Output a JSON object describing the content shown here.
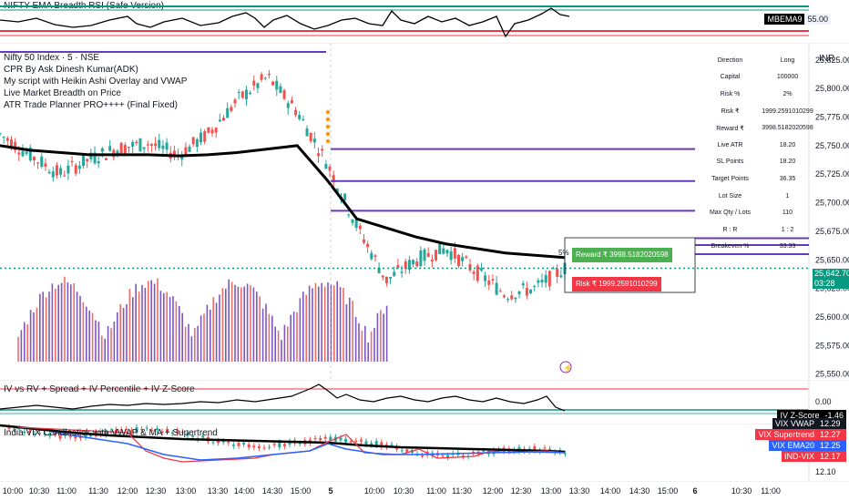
{
  "top_pane": {
    "title": "NIFTY EMA Breadth RSI (Safe Version)",
    "label": "MBEMA9",
    "value": "55.00"
  },
  "main_pane": {
    "symbol": "Nifty 50 Index · 5 · NSE",
    "indicators": [
      "CPR By Ask Dinesh Kumar(ADK)",
      "My script with Heikin Ashi Overlay and VWAP",
      "Live Market Breadth on Price",
      "ATR Trade Planner PRO++++ (Final Fixed)"
    ],
    "currency": "INR",
    "price_axis": [
      "25,825.00",
      "25,800.00",
      "25,775.00",
      "25,750.00",
      "25,725.00",
      "25,700.00",
      "25,675.00",
      "25,650.00",
      "25,625.00",
      "25,600.00",
      "25,575.00",
      "25,550.00"
    ],
    "last_price": "25,642.70",
    "countdown": "03:28",
    "reward_label": "Reward ₹ 3998.5182020598",
    "risk_label": "Risk ₹ 1999.2591010299",
    "side_pct": "5%"
  },
  "trade_table": [
    {
      "k": "Direction",
      "v": "Long"
    },
    {
      "k": "Capital",
      "v": "100000"
    },
    {
      "k": "Risk %",
      "v": "2%"
    },
    {
      "k": "Risk ₹",
      "v": "1999.2591010299"
    },
    {
      "k": "Reward ₹",
      "v": "3998.5182020598"
    },
    {
      "k": "Live ATR",
      "v": "18.20"
    },
    {
      "k": "SL Points",
      "v": "18.20"
    },
    {
      "k": "Target Points",
      "v": "36.35"
    },
    {
      "k": "Lot Size",
      "v": "1"
    },
    {
      "k": "Max Qty / Lots",
      "v": "110"
    },
    {
      "k": "R : R",
      "v": "1 : 2"
    },
    {
      "k": "Breakeven %",
      "v": "33.33"
    }
  ],
  "iv_pane": {
    "title": "IV vs RV + Spread + IV Percentile + IV Z-Score",
    "axis_value": "0.00",
    "label": "IV Z-Score",
    "value": "-1.46"
  },
  "vix_pane": {
    "title": "India VIX Candlestick with VWAP & MA + Supertrend",
    "labels": [
      {
        "name": "VIX VWAP",
        "value": "12.29",
        "color": "#131722",
        "text": "#ffffff"
      },
      {
        "name": "VIX Supertrend",
        "value": "12.27",
        "color": "#f23645",
        "text": "#ffffff"
      },
      {
        "name": "VIX EMA20",
        "value": "12.25",
        "color": "#2962ff",
        "text": "#ffffff"
      },
      {
        "name": "IND-VIX",
        "value": "12.17",
        "color": "#f23645",
        "text": "#ffffff"
      }
    ],
    "axis_bottom": "12.10"
  },
  "time_axis": [
    "10:00",
    "10:30",
    "11:00",
    "11:30",
    "12:00",
    "12:30",
    "13:00",
    "13:30",
    "14:00",
    "14:30",
    "15:00",
    "5",
    "10:00",
    "10:30",
    "11:00",
    "11:30",
    "12:00",
    "12:30",
    "13:00",
    "13:30",
    "14:00",
    "14:30",
    "15:00",
    "6",
    "10:30",
    "11:00"
  ],
  "colors": {
    "up": "#26a69a",
    "down": "#ef5350",
    "purple": "#673ab7",
    "teal": "#089981",
    "red": "#f23645",
    "blue": "#2962ff",
    "black": "#000000"
  },
  "chart_data": {
    "type": "candlestick",
    "x": [
      "10:00",
      "10:30",
      "11:00",
      "11:30",
      "12:00",
      "12:30",
      "13:00",
      "13:30",
      "14:00",
      "14:30",
      "15:00",
      "5",
      "10:00",
      "10:30",
      "11:00",
      "11:30",
      "12:00",
      "12:30",
      "13:00",
      "13:30"
    ],
    "close": [
      25760,
      25742,
      25725,
      25738,
      25748,
      25752,
      25742,
      25760,
      25790,
      25810,
      25780,
      25735,
      25680,
      25632,
      25650,
      25660,
      25640,
      25620,
      25625,
      25642.7
    ],
    "ema_line": [
      25750,
      25746,
      25744,
      25742,
      25742,
      25742,
      25741,
      25742,
      25744,
      25747,
      25750,
      25720,
      25686,
      25678,
      25670,
      25664,
      25660,
      25656,
      25654,
      25652
    ],
    "levels": [
      25832,
      25747,
      25719,
      25693,
      25669,
      25663,
      25655
    ],
    "last": 25642.7,
    "ylim": [
      25545,
      25840
    ],
    "series": [
      {
        "name": "Nifty 50 Index"
      }
    ]
  }
}
